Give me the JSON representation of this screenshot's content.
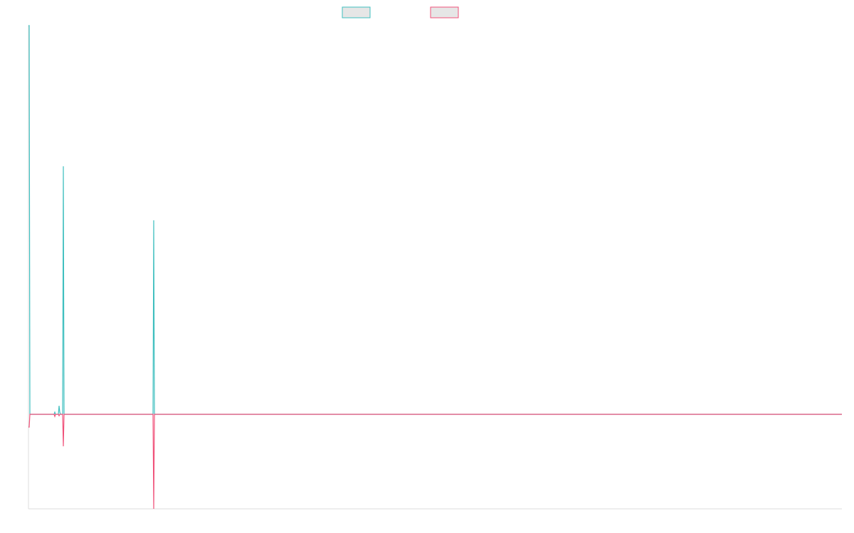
{
  "chart_data": {
    "type": "line",
    "title": "",
    "xlabel": "",
    "ylabel": "",
    "grid": false,
    "legend_placement": "top-center",
    "x": [
      0,
      1,
      2,
      3,
      4,
      5,
      6,
      7,
      8,
      9,
      10,
      11,
      12,
      13,
      14,
      15,
      16,
      17,
      18,
      19,
      20,
      21,
      22,
      23,
      24,
      25,
      26,
      27,
      28,
      29,
      30,
      31,
      32,
      33,
      34,
      35,
      36,
      37,
      38,
      39,
      40,
      41,
      42,
      43,
      44,
      45,
      46,
      47,
      48,
      49,
      50,
      51,
      52,
      53,
      54,
      55,
      56,
      57,
      58,
      59,
      60,
      61,
      62,
      63,
      64,
      65,
      66,
      67,
      68,
      69,
      70,
      71,
      72,
      73,
      74,
      75,
      76,
      77,
      78,
      79,
      80,
      81,
      82,
      83,
      84,
      85,
      86,
      87,
      88,
      89,
      90,
      91,
      92,
      93,
      94,
      95,
      96,
      97,
      98,
      99,
      100,
      101,
      102,
      103,
      104,
      105,
      106,
      107,
      108,
      109,
      110,
      111,
      112,
      113,
      114,
      115,
      116,
      117,
      118,
      119,
      120,
      121,
      122,
      123,
      124,
      125,
      126,
      127,
      128,
      129,
      130,
      131,
      132,
      133,
      134,
      135,
      136,
      137,
      138,
      139,
      140,
      141,
      142,
      143,
      144,
      145,
      146,
      147,
      148,
      149,
      150,
      151,
      152,
      153,
      154,
      155,
      156,
      157,
      158,
      159,
      160,
      161,
      162,
      163,
      164,
      165,
      166,
      167,
      168,
      169,
      170,
      171,
      172,
      173,
      174,
      175,
      176,
      177,
      178,
      179,
      180,
      181,
      182,
      183,
      184,
      185,
      186,
      187,
      188,
      189,
      190,
      191,
      192,
      193,
      194,
      195,
      196,
      197,
      198,
      199,
      200,
      201,
      202,
      203,
      204,
      205,
      206,
      207,
      208,
      209,
      210,
      211,
      212,
      213,
      214,
      215,
      216,
      217,
      218,
      219,
      220,
      221,
      222,
      223,
      224,
      225,
      226,
      227,
      228,
      229,
      230,
      231,
      232,
      233,
      234,
      235,
      236,
      237,
      238,
      239,
      240,
      241,
      242,
      243,
      244,
      245,
      246,
      247,
      248,
      249,
      250,
      251,
      252,
      253,
      254,
      255,
      256,
      257,
      258,
      259,
      260,
      261,
      262,
      263,
      264,
      265,
      266,
      267,
      268,
      269,
      270,
      271,
      272,
      273,
      274,
      275,
      276,
      277,
      278,
      279,
      280,
      281,
      282,
      283,
      284,
      285,
      286,
      287,
      288,
      289,
      290,
      291,
      292,
      293,
      294,
      295,
      296,
      297,
      298,
      299,
      300,
      301,
      302,
      303,
      304,
      305,
      306,
      307,
      308,
      309,
      310,
      311,
      312,
      313,
      314,
      315,
      316,
      317,
      318,
      319,
      320,
      321,
      322,
      323,
      324,
      325,
      326,
      327,
      328,
      329,
      330,
      331,
      332,
      333,
      334,
      335,
      336,
      337,
      338,
      339,
      340,
      341,
      342,
      343,
      344,
      345,
      346,
      347,
      348,
      349,
      350,
      351,
      352,
      353,
      354,
      355,
      356,
      357,
      358,
      359,
      360,
      361,
      362,
      363,
      364,
      365,
      366,
      367,
      368,
      369,
      370,
      371,
      372,
      373,
      374,
      375,
      376,
      377,
      378,
      379,
      380,
      381,
      382,
      383,
      384,
      385,
      386,
      387,
      388,
      389,
      390,
      391,
      392,
      393,
      394,
      395,
      396,
      397,
      398,
      399,
      400,
      401,
      402,
      403,
      404,
      405,
      406,
      407,
      408,
      409,
      410,
      411,
      412,
      413,
      414,
      415,
      416,
      417,
      418,
      419,
      420,
      421,
      422,
      423,
      424,
      425,
      426,
      427,
      428,
      429,
      430,
      431,
      432,
      433,
      434,
      435,
      436,
      437,
      438,
      439,
      440,
      441,
      442,
      443,
      444,
      445,
      446,
      447,
      448,
      449,
      450,
      451,
      452,
      453,
      454,
      455,
      456,
      457,
      458,
      459,
      460,
      461,
      462,
      463,
      464,
      465,
      466,
      467,
      468,
      469,
      470,
      471,
      472,
      473,
      474,
      475,
      476,
      477,
      478,
      479,
      480,
      481,
      482,
      483,
      484,
      485,
      486,
      487,
      488,
      489,
      490,
      491,
      492,
      493,
      494,
      495,
      496,
      497,
      498,
      499,
      500,
      501,
      502,
      503,
      504,
      505,
      506,
      507,
      508,
      509,
      510,
      511,
      512,
      513,
      514,
      515,
      516,
      517,
      518,
      519,
      520,
      521,
      522,
      523,
      524,
      525,
      526,
      527,
      528,
      529,
      530,
      531,
      532,
      533,
      534,
      535,
      536,
      537,
      538,
      539,
      540,
      541,
      542,
      543,
      544,
      545,
      546,
      547,
      548,
      549,
      550,
      551,
      552,
      553,
      554,
      555,
      556,
      557,
      558,
      559,
      560,
      561,
      562,
      563,
      564,
      565,
      566,
      567,
      568,
      569,
      570,
      571,
      572,
      573,
      574,
      575,
      576,
      577,
      578,
      579,
      580,
      581,
      582,
      583,
      584,
      585,
      586,
      587,
      588,
      589,
      590,
      591,
      592,
      593,
      594,
      595,
      596,
      597,
      598,
      599,
      600,
      601,
      602,
      603,
      604,
      605,
      606,
      607,
      608,
      609,
      610,
      611,
      612,
      613,
      614,
      615,
      616,
      617,
      618,
      619,
      620,
      621,
      622,
      623,
      624,
      625,
      626,
      627,
      628,
      629,
      630,
      631,
      632,
      633,
      634,
      635,
      636,
      637,
      638,
      639,
      640,
      641,
      642,
      643,
      644,
      645,
      646,
      647,
      648,
      649,
      650,
      651,
      652,
      653,
      654,
      655,
      656,
      657,
      658,
      659,
      660,
      661,
      662,
      663,
      664,
      665,
      666,
      667,
      668,
      669,
      670,
      671,
      672,
      673,
      674,
      675,
      676,
      677,
      678,
      679,
      680,
      681,
      682,
      683,
      684,
      685,
      686,
      687,
      688,
      689,
      690,
      691,
      692,
      693,
      694,
      695,
      696,
      697,
      698,
      699,
      700,
      701,
      702,
      703,
      704,
      705,
      706,
      707,
      708,
      709,
      710,
      711,
      712,
      713,
      714,
      715,
      716,
      717,
      718,
      719,
      720,
      721,
      722,
      723,
      724,
      725,
      726,
      727,
      728,
      729,
      730,
      731,
      732,
      733,
      734,
      735,
      736,
      737,
      738,
      739,
      740,
      741,
      742,
      743,
      744,
      745,
      746,
      747,
      748,
      749,
      750,
      751,
      752,
      753,
      754,
      755,
      756,
      757,
      758,
      759,
      760,
      761,
      762,
      763,
      764,
      765,
      766,
      767,
      768,
      769,
      770,
      771,
      772,
      773,
      774,
      775,
      776,
      777,
      778,
      779,
      780,
      781,
      782,
      783,
      784,
      785,
      786,
      787,
      788,
      789,
      790,
      791,
      792,
      793,
      794,
      795,
      796,
      797,
      798,
      799,
      800,
      801,
      802,
      803,
      804,
      805,
      806,
      807,
      808,
      809,
      810,
      811,
      812,
      813,
      814,
      815,
      816,
      817,
      818,
      819,
      820,
      821,
      822,
      823,
      824,
      825,
      826,
      827,
      828,
      829,
      830,
      831,
      832,
      833,
      834,
      835,
      836,
      837,
      838,
      839,
      840,
      841,
      842,
      843,
      844,
      845,
      846,
      847,
      848,
      849,
      850,
      851,
      852,
      853,
      854,
      855,
      856,
      857,
      858,
      859,
      860,
      861,
      862,
      863,
      864,
      865,
      866,
      867,
      868,
      869,
      870,
      871,
      872,
      873,
      874,
      875,
      876,
      877,
      878,
      879,
      880,
      881,
      882,
      883,
      884,
      885,
      886,
      887,
      888,
      889,
      890,
      891,
      892,
      893,
      894,
      895,
      896,
      897,
      898,
      899,
      900,
      901,
      902,
      903,
      904,
      905,
      906,
      907,
      908,
      909,
      910,
      911,
      912,
      913,
      914,
      915,
      916,
      917,
      918,
      919,
      920,
      921,
      922,
      923,
      924,
      925,
      926,
      927,
      928,
      929,
      930,
      931,
      932,
      933,
      934,
      935,
      936,
      937,
      938,
      939,
      940,
      941,
      942,
      943,
      944,
      945,
      946,
      947,
      948,
      949,
      950,
      951,
      952,
      953,
      954,
      955,
      956,
      957,
      958,
      959,
      960,
      961,
      962,
      963,
      964,
      965,
      966,
      967,
      968,
      969,
      970,
      971,
      972,
      973,
      974,
      975,
      976,
      977,
      978,
      979,
      980,
      981,
      982,
      983,
      984,
      985,
      986,
      987,
      988,
      989,
      990,
      991,
      992,
      993,
      994,
      995,
      996,
      997,
      998,
      999,
      1000,
      1001,
      1002,
      1003,
      1004,
      1005,
      1006,
      1007,
      1008,
      1009,
      1010,
      1011,
      1012,
      1013,
      1014,
      1015,
      1016,
      1017,
      1018,
      1019,
      1020,
      1021,
      1022,
      1023,
      1024,
      1025,
      1026,
      1027,
      1028,
      1029,
      1030,
      1031,
      1032,
      1033,
      1034,
      1035,
      1036,
      1037,
      1038,
      1039,
      1040,
      1041,
      1042,
      1043,
      1044,
      1045,
      1046,
      1047,
      1048,
      1049,
      1050,
      1051,
      1052,
      1053,
      1054,
      1055,
      1056,
      1057,
      1058,
      1059,
      1060,
      1061,
      1062,
      1063,
      1064,
      1065,
      1066,
      1067,
      1068,
      1069,
      1070,
      1071,
      1072,
      1073,
      1074,
      1075,
      1076,
      1077,
      1078,
      1079,
      1080,
      1081,
      1082,
      1083,
      1084,
      1085,
      1086,
      1087,
      1088,
      1089,
      1090,
      1091,
      1092,
      1093,
      1094,
      1095,
      1096,
      1097,
      1098,
      1099,
      1100,
      1101,
      1102,
      1103,
      1104,
      1105,
      1106,
      1107,
      1108,
      1109,
      1110,
      1111,
      1112,
      1113,
      1114,
      1115,
      1116,
      1117,
      1118,
      1119,
      1120,
      1121,
      1122,
      1123,
      1124,
      1125,
      1126,
      1127,
      1128,
      1129,
      1130,
      1131,
      1132,
      1133,
      1134,
      1135,
      1136,
      1137,
      1138,
      1139,
      1140,
      1141,
      1142,
      1143
    ],
    "xlim": [
      0,
      1143
    ],
    "ylim": [
      -133,
      547
    ],
    "series": [
      {
        "color": "#3fbfbf",
        "points": [
          [
            0,
            547
          ],
          [
            1,
            547
          ],
          [
            2,
            0
          ],
          [
            3,
            0
          ],
          [
            36,
            0
          ],
          [
            37,
            3
          ],
          [
            38,
            0
          ],
          [
            42,
            0
          ],
          [
            43,
            12
          ],
          [
            44,
            3
          ],
          [
            45,
            0
          ],
          [
            48,
            0
          ],
          [
            49,
            349
          ],
          [
            50,
            0
          ],
          [
            51,
            0
          ],
          [
            175,
            0
          ],
          [
            176,
            273
          ],
          [
            177,
            0
          ],
          [
            1143,
            0
          ]
        ]
      },
      {
        "color": "#f0527a",
        "points": [
          [
            0,
            -18
          ],
          [
            1,
            -18
          ],
          [
            2,
            0
          ],
          [
            3,
            0
          ],
          [
            36,
            0
          ],
          [
            37,
            -3
          ],
          [
            38,
            0
          ],
          [
            42,
            0
          ],
          [
            43,
            -2
          ],
          [
            44,
            0
          ],
          [
            48,
            0
          ],
          [
            49,
            -45
          ],
          [
            50,
            0
          ],
          [
            51,
            0
          ],
          [
            175,
            0
          ],
          [
            176,
            -133
          ],
          [
            177,
            0
          ],
          [
            1143,
            0
          ]
        ]
      }
    ]
  }
}
